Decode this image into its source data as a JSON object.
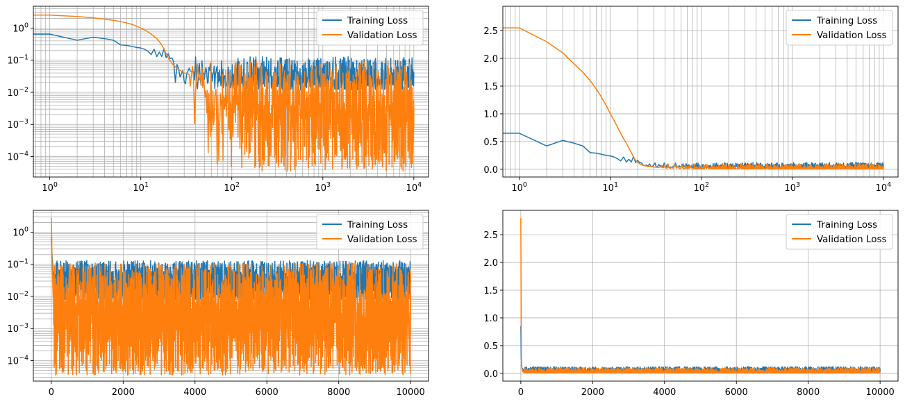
{
  "colors": {
    "training": "#1f77b4",
    "validation": "#ff7f0e",
    "grid": "#b0b0b0"
  },
  "chart_data": [
    {
      "type": "line",
      "panel": "top-left",
      "xscale": "log",
      "yscale": "log",
      "xlim": [
        0.66,
        14500
      ],
      "ylim": [
        2.3e-05,
        4.8
      ],
      "xticks": [
        1,
        10,
        100,
        1000,
        10000
      ],
      "xtick_labels": [
        "10^0",
        "10^1",
        "10^2",
        "10^3",
        "10^4"
      ],
      "yticks": [
        0.0001,
        0.001,
        0.01,
        0.1,
        1
      ],
      "ytick_labels": [
        "10^-4",
        "10^-3",
        "10^-2",
        "10^-1",
        "10^0"
      ],
      "grid": "major+minor",
      "legend": {
        "position": "top-right",
        "entries": [
          "Training Loss",
          "Validation Loss"
        ]
      },
      "series": [
        {
          "name": "Training Loss",
          "color": "training",
          "points": [
            [
              0,
              0.65
            ],
            [
              1,
              0.65
            ],
            [
              2,
              0.42
            ],
            [
              3,
              0.52
            ],
            [
              4,
              0.47
            ],
            [
              5,
              0.42
            ],
            [
              6,
              0.3
            ],
            [
              7,
              0.29
            ],
            [
              8,
              0.27
            ],
            [
              9,
              0.25
            ],
            [
              10,
              0.24
            ],
            [
              11,
              0.22
            ],
            [
              12,
              0.19
            ],
            [
              13,
              0.15
            ],
            [
              14,
              0.22
            ],
            [
              15,
              0.13
            ],
            [
              16,
              0.18
            ],
            [
              17,
              0.13
            ],
            [
              18,
              0.23
            ],
            [
              19,
              0.12
            ],
            [
              20,
              0.16
            ],
            [
              22,
              0.08
            ],
            [
              25,
              0.06
            ],
            [
              30,
              0.04
            ],
            [
              35,
              0.045
            ],
            [
              40,
              0.035
            ],
            [
              50,
              0.03
            ],
            [
              60,
              0.04
            ],
            [
              80,
              0.03
            ],
            [
              100,
              0.025
            ],
            [
              150,
              0.03
            ],
            [
              200,
              0.035
            ],
            [
              300,
              0.025
            ],
            [
              500,
              0.03
            ],
            [
              1000,
              0.025
            ],
            [
              2000,
              0.03
            ],
            [
              5000,
              0.025
            ],
            [
              10000,
              0.03
            ]
          ],
          "noise": {
            "from": 22,
            "low": 0.012,
            "high": 0.13
          }
        },
        {
          "name": "Validation Loss",
          "color": "validation",
          "points": [
            [
              0,
              2.55
            ],
            [
              1,
              2.55
            ],
            [
              2,
              2.3
            ],
            [
              3,
              2.1
            ],
            [
              4,
              1.9
            ],
            [
              5,
              1.75
            ],
            [
              6,
              1.6
            ],
            [
              7,
              1.45
            ],
            [
              8,
              1.3
            ],
            [
              9,
              1.15
            ],
            [
              10,
              1.0
            ],
            [
              11,
              0.88
            ],
            [
              12,
              0.76
            ],
            [
              13,
              0.65
            ],
            [
              14,
              0.55
            ],
            [
              15,
              0.47
            ],
            [
              16,
              0.38
            ],
            [
              17,
              0.3
            ],
            [
              18,
              0.22
            ],
            [
              19,
              0.16
            ],
            [
              20,
              0.12
            ],
            [
              22,
              0.08
            ],
            [
              25,
              0.055
            ],
            [
              30,
              0.04
            ],
            [
              35,
              0.035
            ],
            [
              40,
              0.02
            ],
            [
              50,
              0.012
            ],
            [
              70,
              0.008
            ],
            [
              100,
              0.005
            ],
            [
              200,
              0.004
            ],
            [
              500,
              0.003
            ],
            [
              1000,
              0.0025
            ],
            [
              3000,
              0.002
            ],
            [
              10000,
              0.002
            ]
          ],
          "noise": {
            "from": 35,
            "low": 3.5e-05,
            "high": 0.1
          }
        }
      ]
    },
    {
      "type": "line",
      "panel": "top-right",
      "xscale": "log",
      "yscale": "linear",
      "xlim": [
        0.66,
        14500
      ],
      "ylim": [
        -0.14,
        2.94
      ],
      "xticks": [
        1,
        10,
        100,
        1000,
        10000
      ],
      "xtick_labels": [
        "10^0",
        "10^1",
        "10^2",
        "10^3",
        "10^4"
      ],
      "yticks": [
        0,
        0.5,
        1,
        1.5,
        2,
        2.5
      ],
      "ytick_labels": [
        "0.0",
        "0.5",
        "1.0",
        "1.5",
        "2.0",
        "2.5"
      ],
      "grid": "major+minor-x",
      "legend": {
        "position": "top-right",
        "entries": [
          "Training Loss",
          "Validation Loss"
        ]
      },
      "series": [
        {
          "name": "Training Loss",
          "color": "training",
          "points": [
            [
              0,
              0.65
            ],
            [
              1,
              0.65
            ],
            [
              2,
              0.42
            ],
            [
              3,
              0.52
            ],
            [
              4,
              0.47
            ],
            [
              5,
              0.42
            ],
            [
              6,
              0.3
            ],
            [
              7,
              0.29
            ],
            [
              8,
              0.27
            ],
            [
              9,
              0.25
            ],
            [
              10,
              0.24
            ],
            [
              11,
              0.22
            ],
            [
              12,
              0.19
            ],
            [
              13,
              0.15
            ],
            [
              14,
              0.22
            ],
            [
              15,
              0.13
            ],
            [
              16,
              0.18
            ],
            [
              17,
              0.13
            ],
            [
              18,
              0.23
            ],
            [
              19,
              0.12
            ],
            [
              20,
              0.16
            ],
            [
              22,
              0.08
            ],
            [
              25,
              0.06
            ],
            [
              30,
              0.04
            ],
            [
              40,
              0.035
            ],
            [
              60,
              0.04
            ],
            [
              100,
              0.025
            ],
            [
              200,
              0.035
            ],
            [
              1000,
              0.025
            ],
            [
              10000,
              0.03
            ]
          ],
          "noise": {
            "from": 22,
            "low": 0.0,
            "high": 0.12
          }
        },
        {
          "name": "Validation Loss",
          "color": "validation",
          "points": [
            [
              0,
              2.55
            ],
            [
              1,
              2.55
            ],
            [
              2,
              2.3
            ],
            [
              3,
              2.1
            ],
            [
              4,
              1.9
            ],
            [
              5,
              1.75
            ],
            [
              6,
              1.6
            ],
            [
              7,
              1.45
            ],
            [
              8,
              1.3
            ],
            [
              9,
              1.15
            ],
            [
              10,
              1.0
            ],
            [
              11,
              0.88
            ],
            [
              12,
              0.76
            ],
            [
              13,
              0.65
            ],
            [
              14,
              0.55
            ],
            [
              15,
              0.47
            ],
            [
              16,
              0.38
            ],
            [
              17,
              0.3
            ],
            [
              18,
              0.22
            ],
            [
              19,
              0.16
            ],
            [
              20,
              0.12
            ],
            [
              22,
              0.08
            ],
            [
              25,
              0.055
            ],
            [
              30,
              0.04
            ],
            [
              40,
              0.02
            ],
            [
              100,
              0.005
            ],
            [
              1000,
              0.0025
            ],
            [
              10000,
              0.002
            ]
          ],
          "noise": {
            "from": 35,
            "low": 0.0,
            "high": 0.1
          }
        }
      ]
    },
    {
      "type": "line",
      "panel": "bottom-left",
      "xscale": "linear",
      "yscale": "log",
      "xlim": [
        -500,
        10500
      ],
      "ylim": [
        2.3e-05,
        4.8
      ],
      "xticks": [
        0,
        2000,
        4000,
        6000,
        8000,
        10000
      ],
      "xtick_labels": [
        "0",
        "2000",
        "4000",
        "6000",
        "8000",
        "10000"
      ],
      "yticks": [
        0.0001,
        0.001,
        0.01,
        0.1,
        1
      ],
      "ytick_labels": [
        "10^-4",
        "10^-3",
        "10^-2",
        "10^-1",
        "10^0"
      ],
      "grid": "major+minor-y",
      "legend": {
        "position": "top-right",
        "entries": [
          "Training Loss",
          "Validation Loss"
        ]
      },
      "series": [
        {
          "name": "Training Loss",
          "color": "training",
          "points": [
            [
              0,
              0.65
            ],
            [
              20,
              0.2
            ],
            [
              50,
              0.06
            ],
            [
              100,
              0.03
            ],
            [
              200,
              0.04
            ],
            [
              1000,
              0.03
            ],
            [
              10000,
              0.03
            ]
          ],
          "noise": {
            "from": 100,
            "low": 0.008,
            "high": 0.13
          }
        },
        {
          "name": "Validation Loss",
          "color": "validation",
          "points": [
            [
              0,
              2.8
            ],
            [
              10,
              1.0
            ],
            [
              20,
              0.12
            ],
            [
              50,
              0.01
            ],
            [
              100,
              0.005
            ],
            [
              500,
              0.003
            ],
            [
              10000,
              0.002
            ]
          ],
          "noise": {
            "from": 60,
            "low": 3.5e-05,
            "high": 0.11
          }
        }
      ]
    },
    {
      "type": "line",
      "panel": "bottom-right",
      "xscale": "linear",
      "yscale": "linear",
      "xlim": [
        -500,
        10500
      ],
      "ylim": [
        -0.14,
        2.94
      ],
      "xticks": [
        0,
        2000,
        4000,
        6000,
        8000,
        10000
      ],
      "xtick_labels": [
        "0",
        "2000",
        "4000",
        "6000",
        "8000",
        "10000"
      ],
      "yticks": [
        0,
        0.5,
        1,
        1.5,
        2,
        2.5
      ],
      "ytick_labels": [
        "0.0",
        "0.5",
        "1.0",
        "1.5",
        "2.0",
        "2.5"
      ],
      "grid": "major",
      "legend": {
        "position": "top-right",
        "entries": [
          "Training Loss",
          "Validation Loss"
        ]
      },
      "series": [
        {
          "name": "Training Loss",
          "color": "training",
          "points": [
            [
              0,
              0.85
            ],
            [
              10,
              0.3
            ],
            [
              30,
              0.1
            ],
            [
              100,
              0.04
            ],
            [
              200,
              0.05
            ],
            [
              1000,
              0.03
            ],
            [
              10000,
              0.03
            ]
          ],
          "noise": {
            "from": 100,
            "low": 0.0,
            "high": 0.12
          }
        },
        {
          "name": "Validation Loss",
          "color": "validation",
          "points": [
            [
              0,
              2.8
            ],
            [
              10,
              1.0
            ],
            [
              20,
              0.12
            ],
            [
              50,
              0.03
            ],
            [
              100,
              0.01
            ],
            [
              10000,
              0.005
            ]
          ],
          "noise": {
            "from": 60,
            "low": 0.0,
            "high": 0.1
          }
        }
      ]
    }
  ]
}
